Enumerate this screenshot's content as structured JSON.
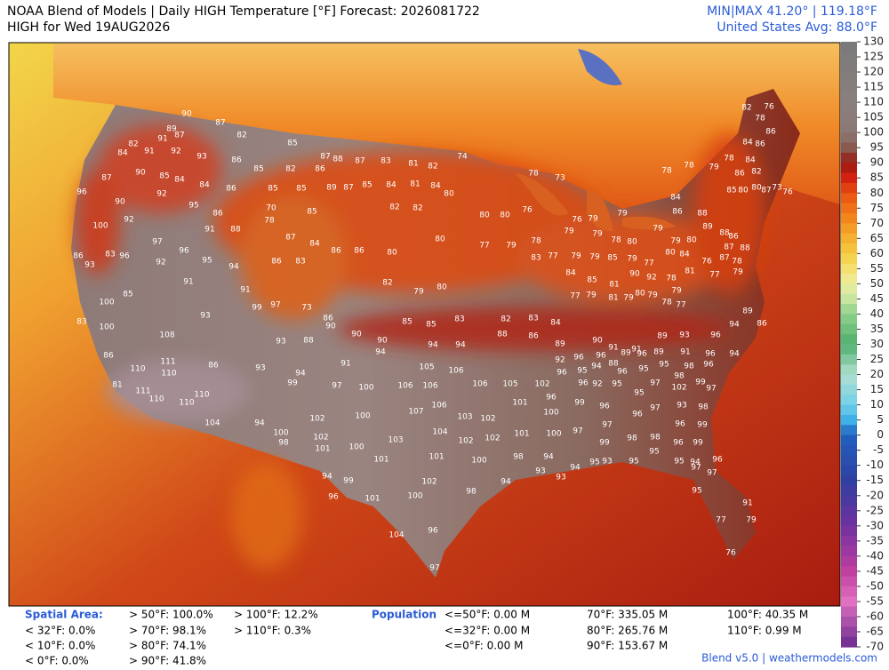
{
  "header": {
    "title": "NOAA Blend of Models | Daily HIGH Temperature [°F] Forecast: 2026081722",
    "subtitle": "HIGH for Wed 19AUG2026",
    "minmax": "MIN|MAX 41.20° | 119.18°F",
    "average": "United States Avg: 88.0°F"
  },
  "colorbar": {
    "ticks": [
      130,
      125,
      120,
      115,
      110,
      105,
      100,
      95,
      90,
      85,
      80,
      75,
      70,
      65,
      60,
      55,
      50,
      45,
      40,
      35,
      30,
      25,
      20,
      15,
      10,
      5,
      0,
      -5,
      -10,
      -15,
      -20,
      -25,
      -30,
      -35,
      -40,
      -45,
      -50,
      -55,
      -60,
      -65,
      -70
    ]
  },
  "stations": [
    90,
    87,
    89,
    91,
    87,
    82,
    82,
    84,
    91,
    92,
    93,
    86,
    85,
    87,
    88,
    87,
    83,
    81,
    82,
    85,
    82,
    86,
    87,
    90,
    85,
    84,
    84,
    86,
    85,
    85,
    89,
    87,
    85,
    84,
    81,
    84,
    74,
    78,
    73,
    96,
    90,
    92,
    95,
    86,
    70,
    85,
    82,
    82,
    80,
    80,
    80,
    76,
    100,
    92,
    91,
    88,
    78,
    87,
    84,
    86,
    86,
    80,
    80,
    77,
    79,
    78,
    97,
    96,
    95,
    94,
    86,
    83,
    86,
    93,
    83,
    96,
    92,
    91,
    91,
    99,
    97,
    73,
    86,
    82,
    79,
    80,
    85,
    100,
    93,
    93,
    88,
    90,
    90,
    90,
    85,
    85,
    83,
    82,
    83,
    84,
    83,
    100,
    108,
    111,
    110,
    110,
    86,
    93,
    94,
    91,
    94,
    94,
    94,
    88,
    86,
    89,
    86,
    81,
    111,
    110,
    110,
    110,
    99,
    97,
    100,
    106,
    106,
    105,
    106,
    106,
    105,
    102,
    104,
    94,
    100,
    102,
    100,
    107,
    106,
    103,
    102,
    101,
    100,
    98,
    102,
    101,
    100,
    103,
    104,
    102,
    102,
    101,
    100,
    101,
    101,
    100,
    98,
    94,
    99,
    102,
    94,
    96,
    101,
    100,
    98,
    104,
    96,
    97,
    90,
    91,
    91,
    89,
    93,
    96,
    94,
    89,
    86,
    92,
    96,
    96,
    89,
    96,
    89,
    91,
    96,
    94,
    96,
    95,
    94,
    88,
    96,
    95,
    95,
    98,
    96,
    96,
    92,
    95,
    95,
    97,
    98,
    99,
    97,
    102,
    96,
    99,
    96,
    96,
    97,
    93,
    98,
    96,
    99,
    97,
    99,
    97,
    98,
    98,
    96,
    99,
    95,
    95,
    93,
    95,
    95,
    94,
    96,
    97,
    97,
    94,
    93,
    94,
    93,
    95,
    91,
    77,
    79,
    76,
    82,
    76,
    78,
    86,
    84,
    86,
    84,
    86,
    82,
    85,
    80,
    80,
    87,
    73,
    76,
    78,
    79,
    78,
    78,
    84,
    86,
    88,
    89,
    88,
    86,
    87,
    88,
    87,
    76,
    78,
    77,
    79,
    79,
    80,
    79,
    79,
    79,
    76,
    79,
    79,
    78,
    80,
    83,
    77,
    79,
    79,
    85,
    79,
    77,
    80,
    84,
    84,
    85,
    81,
    90,
    92,
    78,
    81,
    77,
    79,
    81,
    79,
    80,
    79,
    79,
    78,
    77
  ],
  "stats": {
    "spatial_label": "Spatial Area:",
    "spatial": [
      "< 32°F: 0.0%",
      "< 10°F: 0.0%",
      "< 0°F: 0.0%",
      "> 50°F: 100.0%",
      "> 70°F: 98.1%",
      "> 80°F: 74.1%",
      "> 90°F: 41.8%",
      "> 100°F: 12.2%",
      "> 110°F: 0.3%"
    ],
    "population_label": "Population",
    "population": [
      "<=50°F: 0.00 M",
      "<=32°F: 0.00 M",
      "<=0°F: 0.00 M",
      "70°F: 335.05 M",
      "80°F: 265.76 M",
      "90°F: 153.67 M",
      "100°F: 40.35 M",
      "110°F: 0.99 M"
    ]
  },
  "footer": {
    "credit": "Blend v5.0 | weathermodels.com"
  }
}
